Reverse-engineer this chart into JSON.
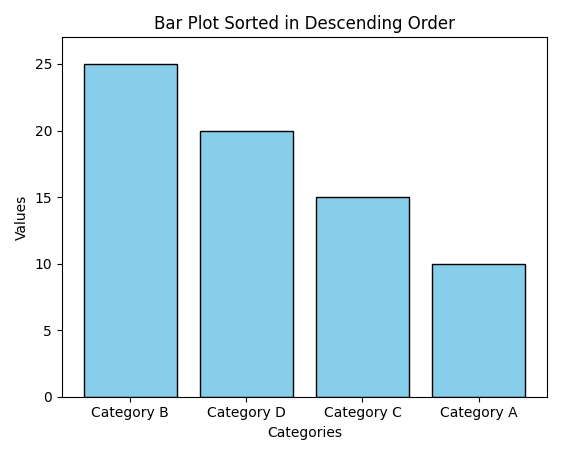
{
  "categories": [
    "Category B",
    "Category D",
    "Category C",
    "Category A"
  ],
  "values": [
    25,
    20,
    15,
    10
  ],
  "bar_color": "#87CEEB",
  "bar_edgecolor": "#000000",
  "title": "Bar Plot Sorted in Descending Order",
  "xlabel": "Categories",
  "ylabel": "Values",
  "ylim": [
    0,
    27
  ],
  "title_fontsize": 12,
  "label_fontsize": 10,
  "tick_fontsize": 10,
  "background_color": "#ffffff",
  "figwidth": 5.62,
  "figheight": 4.55,
  "dpi": 100
}
